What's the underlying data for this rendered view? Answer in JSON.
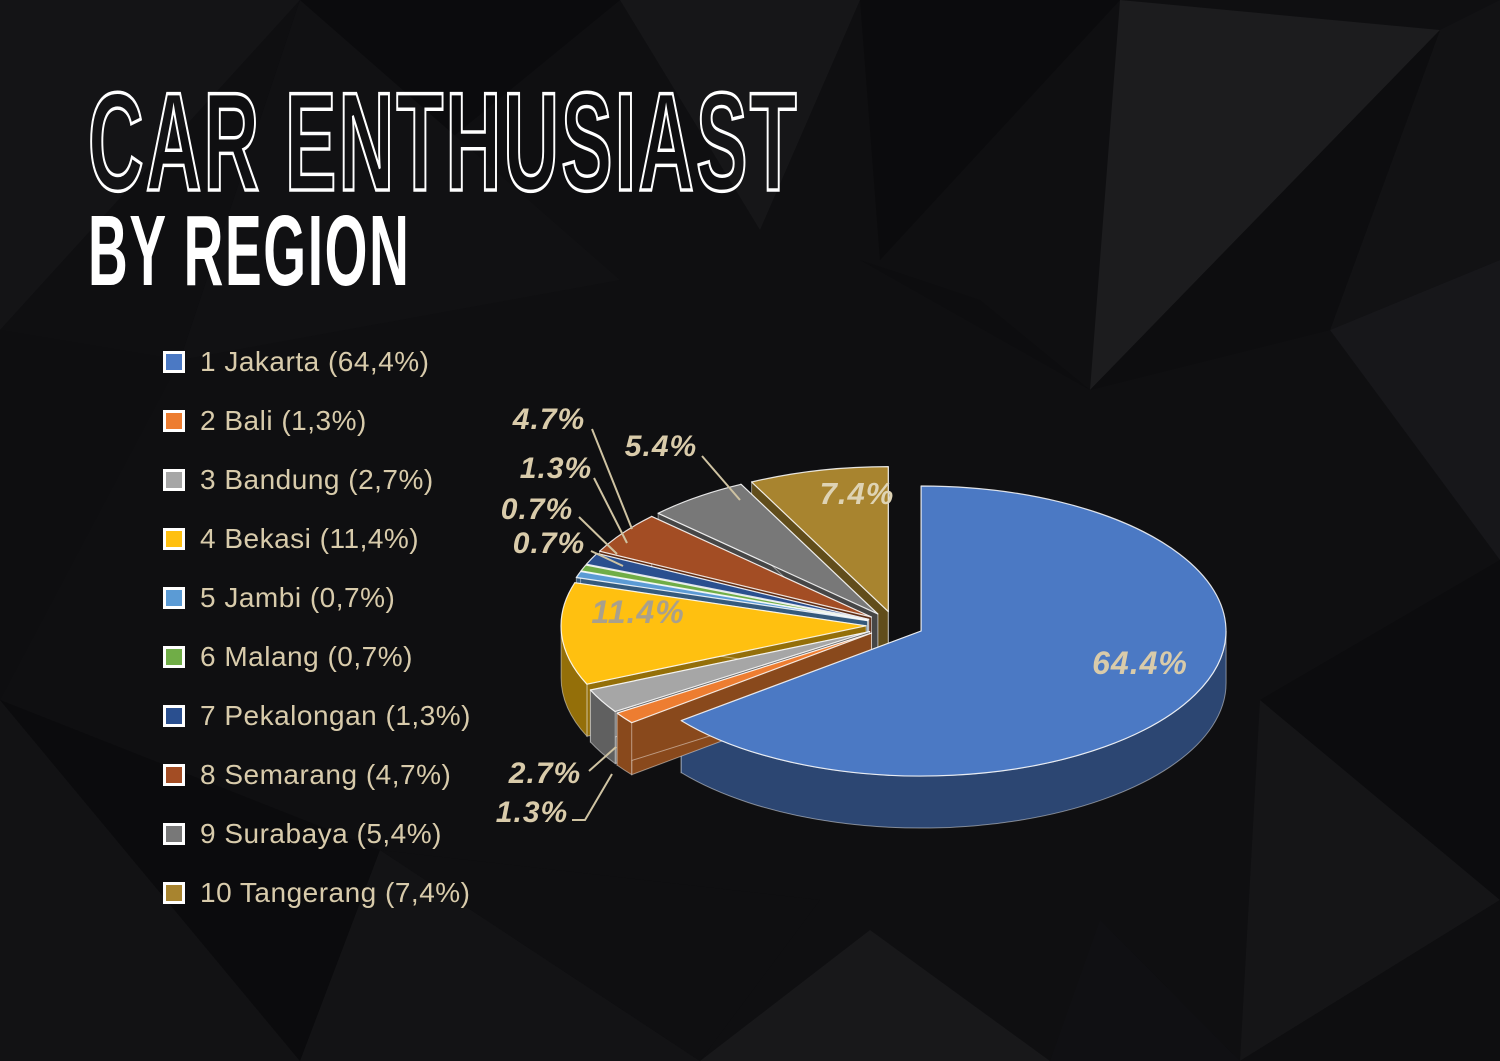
{
  "title": {
    "line1": "CAR ENTHUSIAST",
    "line2": "BY REGION"
  },
  "colors": {
    "background": "#0f0f11",
    "legend_text": "#d8cbab",
    "title_text": "#ffffff",
    "leader_line": "#cfc3a2",
    "label_beige": "#d9cbaa",
    "label_on_yellow": "#a9a08c",
    "label_on_gold": "#ded3b4"
  },
  "legend": {
    "items": [
      {
        "text": "1 Jakarta (64,4%)",
        "color": "#4b79c4"
      },
      {
        "text": "2 Bali (1,3%)",
        "color": "#ED7D31"
      },
      {
        "text": "3 Bandung (2,7%)",
        "color": "#A6A6A6"
      },
      {
        "text": "4 Bekasi (11,4%)",
        "color": "#FFC010"
      },
      {
        "text": "5 Jambi (0,7%)",
        "color": "#5B9BD5"
      },
      {
        "text": "6 Malang (0,7%)",
        "color": "#70AD47"
      },
      {
        "text": "7 Pekalongan (1,3%)",
        "color": "#2A4F8F"
      },
      {
        "text": "8 Semarang (4,7%)",
        "color": "#A34D24"
      },
      {
        "text": "9 Surabaya (5,4%)",
        "color": "#787878"
      },
      {
        "text": "10 Tangerang (7,4%)",
        "color": "#A8842F"
      }
    ]
  },
  "chart_data": {
    "type": "pie",
    "is_3d": true,
    "exploded": true,
    "start_angle_deg_from_top": 0,
    "direction": "clockwise",
    "legend_position": "left",
    "slices": [
      {
        "rank": 1,
        "region": "Jakarta",
        "percent": 64.4,
        "label": "64.4%",
        "color": "#4b79c4",
        "label_placement": "inside"
      },
      {
        "rank": 2,
        "region": "Bali",
        "percent": 1.3,
        "label": "1.3%",
        "color": "#ED7D31",
        "label_placement": "outside"
      },
      {
        "rank": 3,
        "region": "Bandung",
        "percent": 2.7,
        "label": "2.7%",
        "color": "#A6A6A6",
        "label_placement": "outside"
      },
      {
        "rank": 4,
        "region": "Bekasi",
        "percent": 11.4,
        "label": "11.4%",
        "color": "#FFC010",
        "label_placement": "inside"
      },
      {
        "rank": 5,
        "region": "Jambi",
        "percent": 0.7,
        "label": "0.7%",
        "color": "#5B9BD5",
        "label_placement": "outside"
      },
      {
        "rank": 6,
        "region": "Malang",
        "percent": 0.7,
        "label": "0.7%",
        "color": "#70AD47",
        "label_placement": "outside"
      },
      {
        "rank": 7,
        "region": "Pekalongan",
        "percent": 1.3,
        "label": "1.3%",
        "color": "#2A4F8F",
        "label_placement": "outside"
      },
      {
        "rank": 8,
        "region": "Semarang",
        "percent": 4.7,
        "label": "4.7%",
        "color": "#A34D24",
        "label_placement": "outside"
      },
      {
        "rank": 9,
        "region": "Surabaya",
        "percent": 5.4,
        "label": "5.4%",
        "color": "#787878",
        "label_placement": "outside"
      },
      {
        "rank": 10,
        "region": "Tangerang",
        "percent": 7.4,
        "label": "7.4%",
        "color": "#A8842F",
        "label_placement": "inside"
      }
    ]
  }
}
